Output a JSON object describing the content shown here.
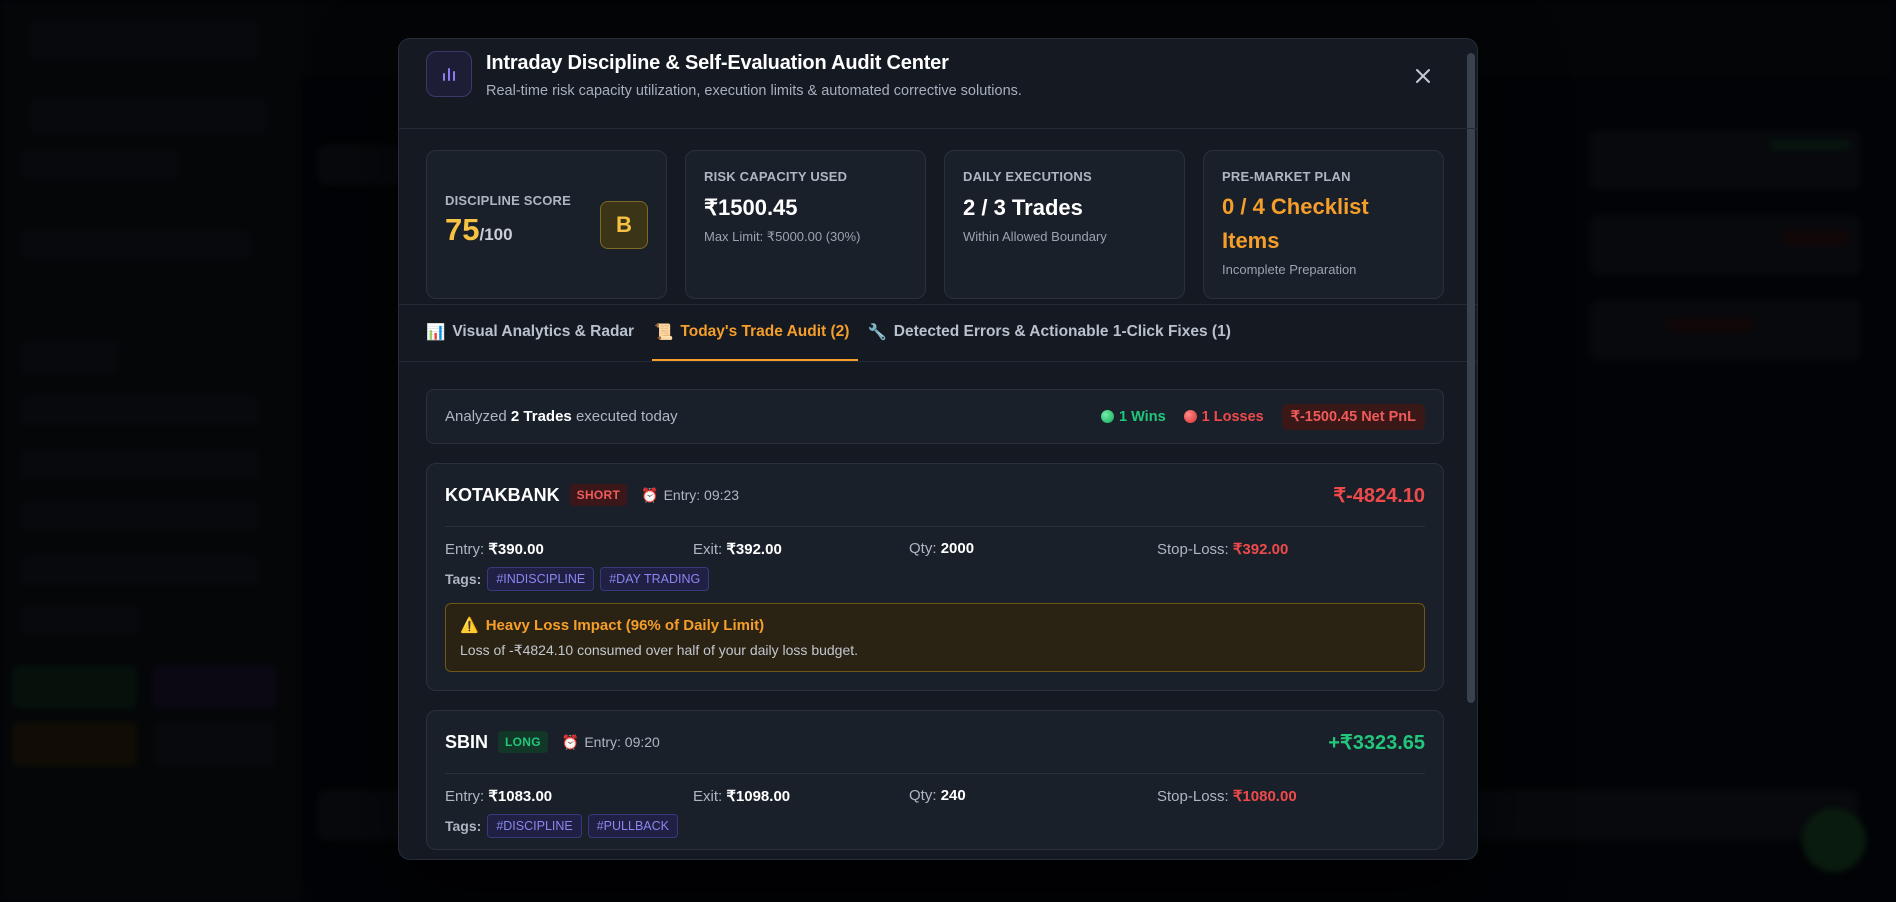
{
  "modal": {
    "title": "Intraday Discipline & Self-Evaluation Audit Center",
    "subtitle": "Real-time risk capacity utilization, execution limits & automated corrective solutions."
  },
  "stats": {
    "discipline": {
      "label": "DISCIPLINE SCORE",
      "score": "75",
      "denominator": "/100",
      "grade": "B"
    },
    "risk": {
      "label": "RISK CAPACITY USED",
      "value": "₹1500.45",
      "sub": "Max Limit: ₹5000.00 (30%)"
    },
    "executions": {
      "label": "DAILY EXECUTIONS",
      "value": "2 / 3 Trades",
      "sub": "Within Allowed Boundary"
    },
    "plan": {
      "label": "PRE-MARKET PLAN",
      "value_line1": "0 / 4 Checklist",
      "value_line2": "Items",
      "sub": "Incomplete Preparation"
    }
  },
  "tabs": [
    {
      "icon": "📊",
      "label": "Visual Analytics & Radar"
    },
    {
      "icon": "📜",
      "label": "Today's Trade Audit (2)"
    },
    {
      "icon": "🔧",
      "label": "Detected Errors & Actionable 1-Click Fixes (1)"
    }
  ],
  "summary": {
    "prefix": "Analyzed",
    "count": "2 Trades",
    "suffix": "executed today",
    "wins": "1 Wins",
    "losses": "1 Losses",
    "net": "₹-1500.45 Net PnL"
  },
  "labels": {
    "entry": "Entry:",
    "exit": "Exit:",
    "qty": "Qty:",
    "stop_loss": "Stop-Loss:",
    "tags": "Tags:"
  },
  "trades": [
    {
      "symbol": "KOTAKBANK",
      "side": "SHORT",
      "entry_time": "Entry: 09:23",
      "pnl": "₹-4824.10",
      "entry": "₹390.00",
      "exit": "₹392.00",
      "qty": "2000",
      "stop_loss": "₹392.00",
      "tags": [
        "#INDISCIPLINE",
        "#DAY TRADING"
      ],
      "warning_title": "Heavy Loss Impact (96% of Daily Limit)",
      "warning_text": "Loss of -₹4824.10 consumed over half of your daily loss budget."
    },
    {
      "symbol": "SBIN",
      "side": "LONG",
      "entry_time": "Entry: 09:20",
      "pnl": "+₹3323.65",
      "entry": "₹1083.00",
      "exit": "₹1098.00",
      "qty": "240",
      "stop_loss": "₹1080.00",
      "tags": [
        "#DISCIPLINE",
        "#PULLBACK"
      ]
    }
  ],
  "colors": {
    "accent": "#f59e2a",
    "profit": "#22c77b",
    "loss": "#ef4a4a",
    "score": "#f6c243",
    "tag": "#8b86f0"
  }
}
